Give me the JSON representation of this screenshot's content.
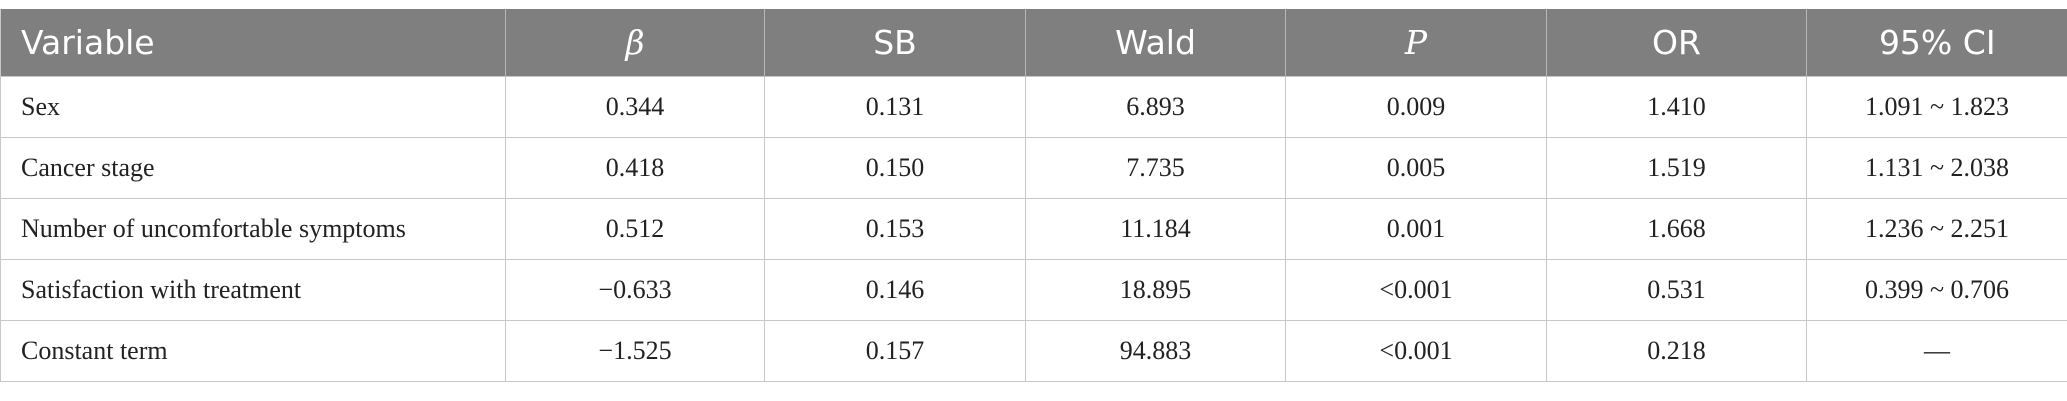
{
  "table": {
    "header": [
      "Variable",
      "β",
      "SB",
      "Wald",
      "P",
      "OR",
      "95% CI"
    ],
    "rows": [
      [
        "Sex",
        "0.344",
        "0.131",
        "6.893",
        "0.009",
        "1.410",
        "1.091 ~ 1.823"
      ],
      [
        "Cancer stage",
        "0.418",
        "0.150",
        "7.735",
        "0.005",
        "1.519",
        "1.131 ~ 2.038"
      ],
      [
        "Number of uncomfortable symptoms",
        "0.512",
        "0.153",
        "11.184",
        "0.001",
        "1.668",
        "1.236 ~ 2.251"
      ],
      [
        "Satisfaction with treatment",
        "−0.633",
        "0.146",
        "18.895",
        "<0.001",
        "0.531",
        "0.399 ~ 0.706"
      ],
      [
        "Constant term",
        "−1.525",
        "0.157",
        "94.883",
        "<0.001",
        "0.218",
        "—"
      ]
    ]
  }
}
